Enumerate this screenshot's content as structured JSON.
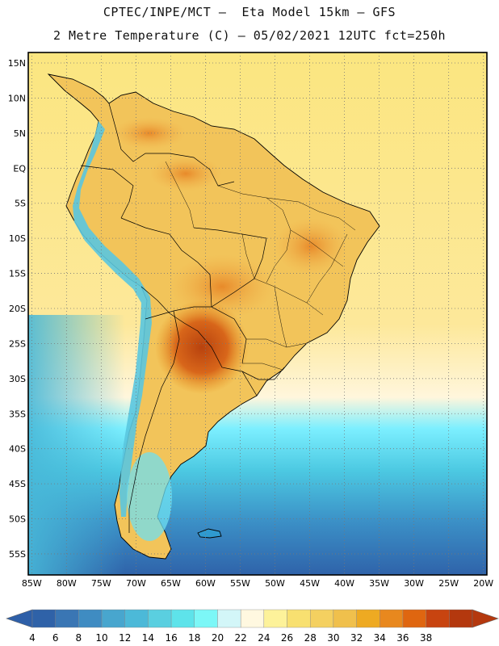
{
  "header": {
    "line1": "CPTEC/INPE/MCT –  Eta Model 15km – GFS",
    "line2": "2 Metre Temperature (C) – 05/02/2021 12UTC fct=250h"
  },
  "axes": {
    "lat_labels": [
      "15N",
      "10N",
      "5N",
      "EQ",
      "5S",
      "10S",
      "15S",
      "20S",
      "25S",
      "30S",
      "35S",
      "40S",
      "45S",
      "50S",
      "55S"
    ],
    "lat_values": [
      15,
      10,
      5,
      0,
      -5,
      -10,
      -15,
      -20,
      -25,
      -30,
      -35,
      -40,
      -45,
      -50,
      -55
    ],
    "lon_labels": [
      "85W",
      "80W",
      "75W",
      "70W",
      "65W",
      "60W",
      "55W",
      "50W",
      "45W",
      "40W",
      "35W",
      "30W",
      "25W",
      "20W"
    ],
    "lon_values": [
      -85,
      -80,
      -75,
      -70,
      -65,
      -60,
      -55,
      -50,
      -45,
      -40,
      -35,
      -30,
      -25,
      -20
    ],
    "lat_range": [
      -58,
      16.5
    ],
    "lon_range": [
      -85.5,
      -19.5
    ]
  },
  "colorbar": {
    "labels": [
      "4",
      "6",
      "8",
      "10",
      "12",
      "14",
      "16",
      "18",
      "20",
      "22",
      "24",
      "26",
      "28",
      "30",
      "32",
      "34",
      "36",
      "38"
    ],
    "colors": [
      "#2f62a8",
      "#3a76b4",
      "#3f8cc2",
      "#48a6ce",
      "#4cb9d8",
      "#5acfe0",
      "#5ee3ea",
      "#7cf7f7",
      "#d3f6f8",
      "#fff8e0",
      "#fdf29a",
      "#f8e070",
      "#f4d060",
      "#f0c04c",
      "#eeaa22",
      "#e8881e",
      "#df6610",
      "#c84410",
      "#b4380e"
    ],
    "under_color": "#2e5fa8",
    "over_color": "#b4380e"
  },
  "map": {
    "land_fill": "#f2c45a",
    "ocean_fill": "#fbe680",
    "southern_ocean_fill": "#3d86c2"
  }
}
